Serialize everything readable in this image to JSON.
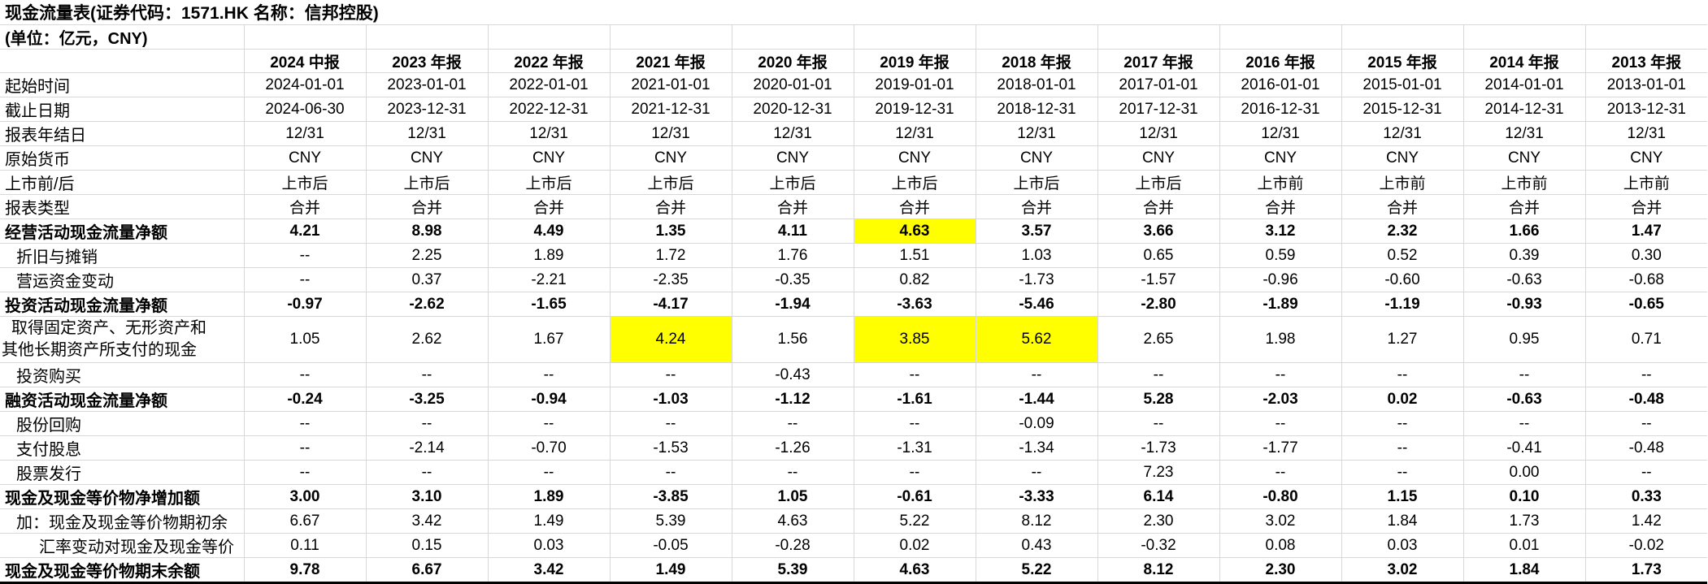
{
  "title": "现金流量表(证券代码：1571.HK 名称：信邦控股)",
  "subtitle": "(单位：亿元，CNY)",
  "columns": [
    "2024 中报",
    "2023 年报",
    "2022 年报",
    "2021 年报",
    "2020 年报",
    "2019 年报",
    "2018 年报",
    "2017 年报",
    "2016 年报",
    "2015 年报",
    "2014 年报",
    "2013 年报"
  ],
  "rows": [
    {
      "label": "起始时间",
      "indent": 0,
      "bold": false,
      "values": [
        "2024-01-01",
        "2023-01-01",
        "2022-01-01",
        "2021-01-01",
        "2020-01-01",
        "2019-01-01",
        "2018-01-01",
        "2017-01-01",
        "2016-01-01",
        "2015-01-01",
        "2014-01-01",
        "2013-01-01"
      ]
    },
    {
      "label": "截止日期",
      "indent": 0,
      "bold": false,
      "values": [
        "2024-06-30",
        "2023-12-31",
        "2022-12-31",
        "2021-12-31",
        "2020-12-31",
        "2019-12-31",
        "2018-12-31",
        "2017-12-31",
        "2016-12-31",
        "2015-12-31",
        "2014-12-31",
        "2013-12-31"
      ]
    },
    {
      "label": "报表年结日",
      "indent": 0,
      "bold": false,
      "values": [
        "12/31",
        "12/31",
        "12/31",
        "12/31",
        "12/31",
        "12/31",
        "12/31",
        "12/31",
        "12/31",
        "12/31",
        "12/31",
        "12/31"
      ]
    },
    {
      "label": "原始货币",
      "indent": 0,
      "bold": false,
      "values": [
        "CNY",
        "CNY",
        "CNY",
        "CNY",
        "CNY",
        "CNY",
        "CNY",
        "CNY",
        "CNY",
        "CNY",
        "CNY",
        "CNY"
      ]
    },
    {
      "label": "上市前/后",
      "indent": 0,
      "bold": false,
      "values": [
        "上市后",
        "上市后",
        "上市后",
        "上市后",
        "上市后",
        "上市后",
        "上市后",
        "上市后",
        "上市前",
        "上市前",
        "上市前",
        "上市前"
      ]
    },
    {
      "label": "报表类型",
      "indent": 0,
      "bold": false,
      "values": [
        "合并",
        "合并",
        "合并",
        "合并",
        "合并",
        "合并",
        "合并",
        "合并",
        "合并",
        "合并",
        "合并",
        "合并"
      ]
    },
    {
      "label": "经营活动现金流量净额",
      "indent": 0,
      "bold": true,
      "values": [
        "4.21",
        "8.98",
        "4.49",
        "1.35",
        "4.11",
        "4.63",
        "3.57",
        "3.66",
        "3.12",
        "2.32",
        "1.66",
        "1.47"
      ]
    },
    {
      "label": "折旧与摊销",
      "indent": 1,
      "bold": false,
      "values": [
        "--",
        "2.25",
        "1.89",
        "1.72",
        "1.76",
        "1.51",
        "1.03",
        "0.65",
        "0.59",
        "0.52",
        "0.39",
        "0.30"
      ]
    },
    {
      "label": "营运资金变动",
      "indent": 1,
      "bold": false,
      "values": [
        "--",
        "0.37",
        "-2.21",
        "-2.35",
        "-0.35",
        "0.82",
        "-1.73",
        "-1.57",
        "-0.96",
        "-0.60",
        "-0.63",
        "-0.68"
      ]
    },
    {
      "label": "投资活动现金流量净额",
      "indent": 0,
      "bold": true,
      "values": [
        "-0.97",
        "-2.62",
        "-1.65",
        "-4.17",
        "-1.94",
        "-3.63",
        "-5.46",
        "-2.80",
        "-1.89",
        "-1.19",
        "-0.93",
        "-0.65"
      ]
    },
    {
      "label": "取得固定资产、无形资产和\n其他长期资产所支付的现金",
      "indent": 1,
      "bold": false,
      "values": [
        "1.05",
        "2.62",
        "1.67",
        "4.24",
        "1.56",
        "3.85",
        "5.62",
        "2.65",
        "1.98",
        "1.27",
        "0.95",
        "0.71"
      ]
    },
    {
      "label": "投资购买",
      "indent": 1,
      "bold": false,
      "values": [
        "--",
        "--",
        "--",
        "--",
        "-0.43",
        "--",
        "--",
        "--",
        "--",
        "--",
        "--",
        "--"
      ]
    },
    {
      "label": "融资活动现金流量净额",
      "indent": 0,
      "bold": true,
      "values": [
        "-0.24",
        "-3.25",
        "-0.94",
        "-1.03",
        "-1.12",
        "-1.61",
        "-1.44",
        "5.28",
        "-2.03",
        "0.02",
        "-0.63",
        "-0.48"
      ]
    },
    {
      "label": "股份回购",
      "indent": 1,
      "bold": false,
      "values": [
        "--",
        "--",
        "--",
        "--",
        "--",
        "--",
        "-0.09",
        "--",
        "--",
        "--",
        "--",
        "--"
      ]
    },
    {
      "label": "支付股息",
      "indent": 1,
      "bold": false,
      "values": [
        "--",
        "-2.14",
        "-0.70",
        "-1.53",
        "-1.26",
        "-1.31",
        "-1.34",
        "-1.73",
        "-1.77",
        "--",
        "-0.41",
        "-0.48"
      ]
    },
    {
      "label": "股票发行",
      "indent": 1,
      "bold": false,
      "values": [
        "--",
        "--",
        "--",
        "--",
        "--",
        "--",
        "--",
        "7.23",
        "--",
        "--",
        "0.00",
        "--"
      ]
    },
    {
      "label": "现金及现金等价物净增加额",
      "indent": 0,
      "bold": true,
      "values": [
        "3.00",
        "3.10",
        "1.89",
        "-3.85",
        "1.05",
        "-0.61",
        "-3.33",
        "6.14",
        "-0.80",
        "1.15",
        "0.10",
        "0.33"
      ]
    },
    {
      "label": "加：现金及现金等价物期初余",
      "indent": 1,
      "bold": false,
      "values": [
        "6.67",
        "3.42",
        "1.49",
        "5.39",
        "4.63",
        "5.22",
        "8.12",
        "2.30",
        "3.02",
        "1.84",
        "1.73",
        "1.42"
      ]
    },
    {
      "label": "汇率变动对现金及现金等价",
      "indent": 2,
      "bold": false,
      "values": [
        "0.11",
        "0.15",
        "0.03",
        "-0.05",
        "-0.28",
        "0.02",
        "0.43",
        "-0.32",
        "0.08",
        "0.03",
        "0.01",
        "-0.02"
      ]
    },
    {
      "label": "现金及现金等价物期末余额",
      "indent": 0,
      "bold": true,
      "values": [
        "9.78",
        "6.67",
        "3.42",
        "1.49",
        "5.39",
        "4.63",
        "5.22",
        "8.12",
        "2.30",
        "3.02",
        "1.84",
        "1.73"
      ]
    }
  ],
  "highlights": [
    [
      6,
      5
    ],
    [
      10,
      3
    ],
    [
      10,
      5
    ],
    [
      10,
      6
    ]
  ],
  "colors": {
    "highlight_yellow": "#ffff00",
    "gridline": "#d8d8d8",
    "bottom_border": "#000000",
    "text": "#000000"
  }
}
